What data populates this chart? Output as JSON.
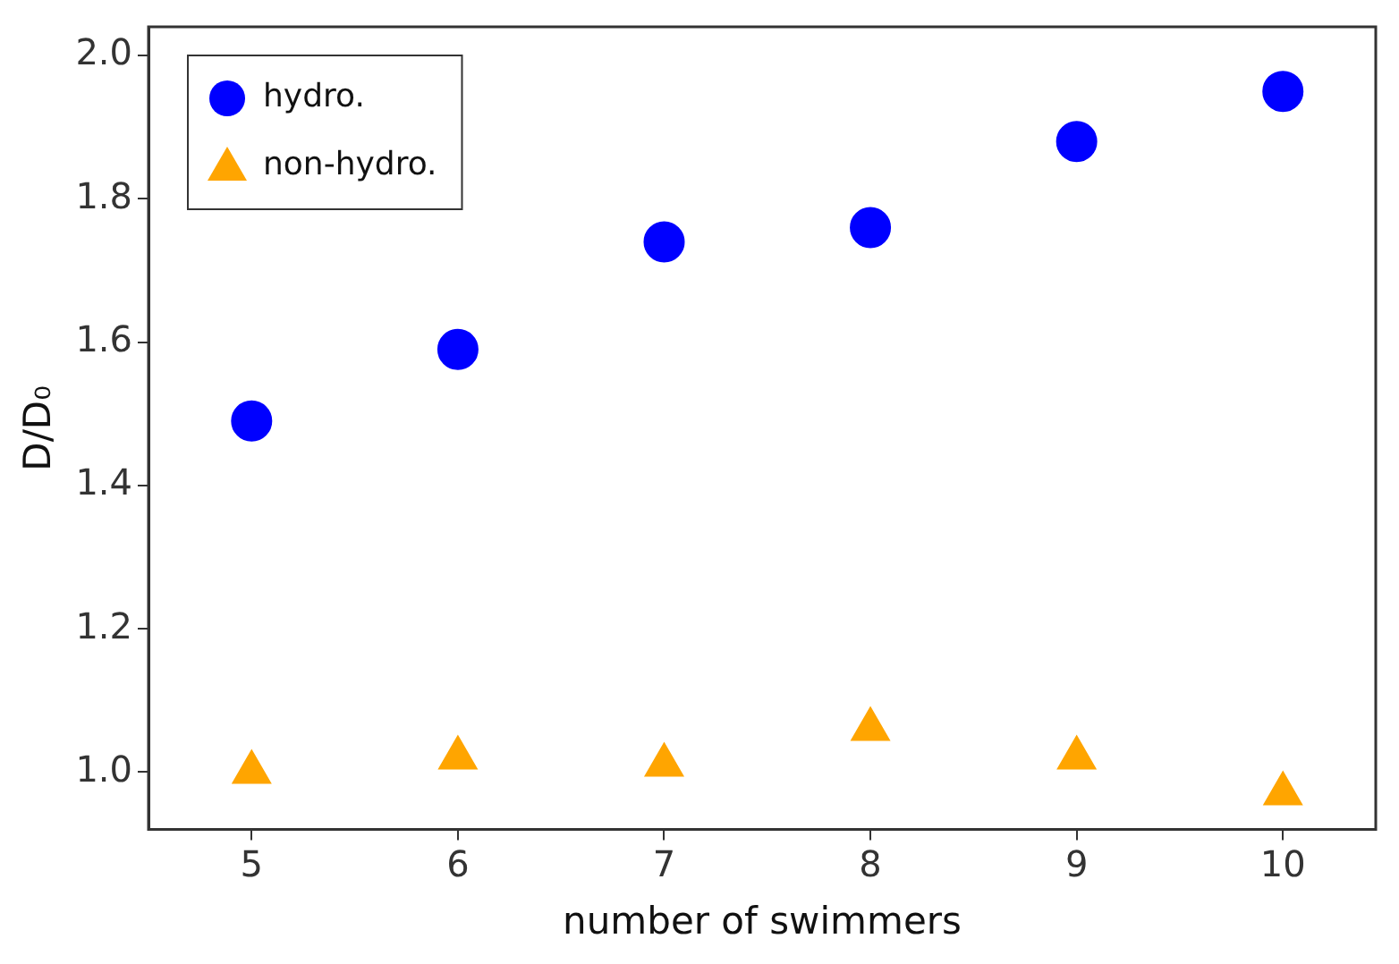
{
  "chart_data": {
    "type": "scatter",
    "xlabel": "number of swimmers",
    "ylabel": "D/D₀",
    "x": [
      5,
      6,
      7,
      8,
      9,
      10
    ],
    "series": [
      {
        "name": "hydro.",
        "color": "#0000ff",
        "marker": "circle",
        "values": [
          1.49,
          1.59,
          1.74,
          1.76,
          1.88,
          1.95
        ]
      },
      {
        "name": "non-hydro.",
        "color": "#ffa500",
        "marker": "triangle",
        "values": [
          1.0,
          1.02,
          1.01,
          1.06,
          1.02,
          0.97
        ]
      }
    ],
    "xlim": [
      4.5,
      10.45
    ],
    "xticks": [
      5,
      6,
      7,
      8,
      9,
      10
    ],
    "ylim": [
      0.92,
      2.04
    ],
    "yticks": [
      {
        "value": 1,
        "label": "1.0"
      },
      {
        "value": 1.2,
        "label": "1.2"
      },
      {
        "value": 1.4,
        "label": "1.4"
      },
      {
        "value": 1.6,
        "label": "1.6"
      },
      {
        "value": 1.8,
        "label": "1.8"
      },
      {
        "value": 2,
        "label": "2.0"
      }
    ],
    "grid": false,
    "legend": "top left"
  }
}
